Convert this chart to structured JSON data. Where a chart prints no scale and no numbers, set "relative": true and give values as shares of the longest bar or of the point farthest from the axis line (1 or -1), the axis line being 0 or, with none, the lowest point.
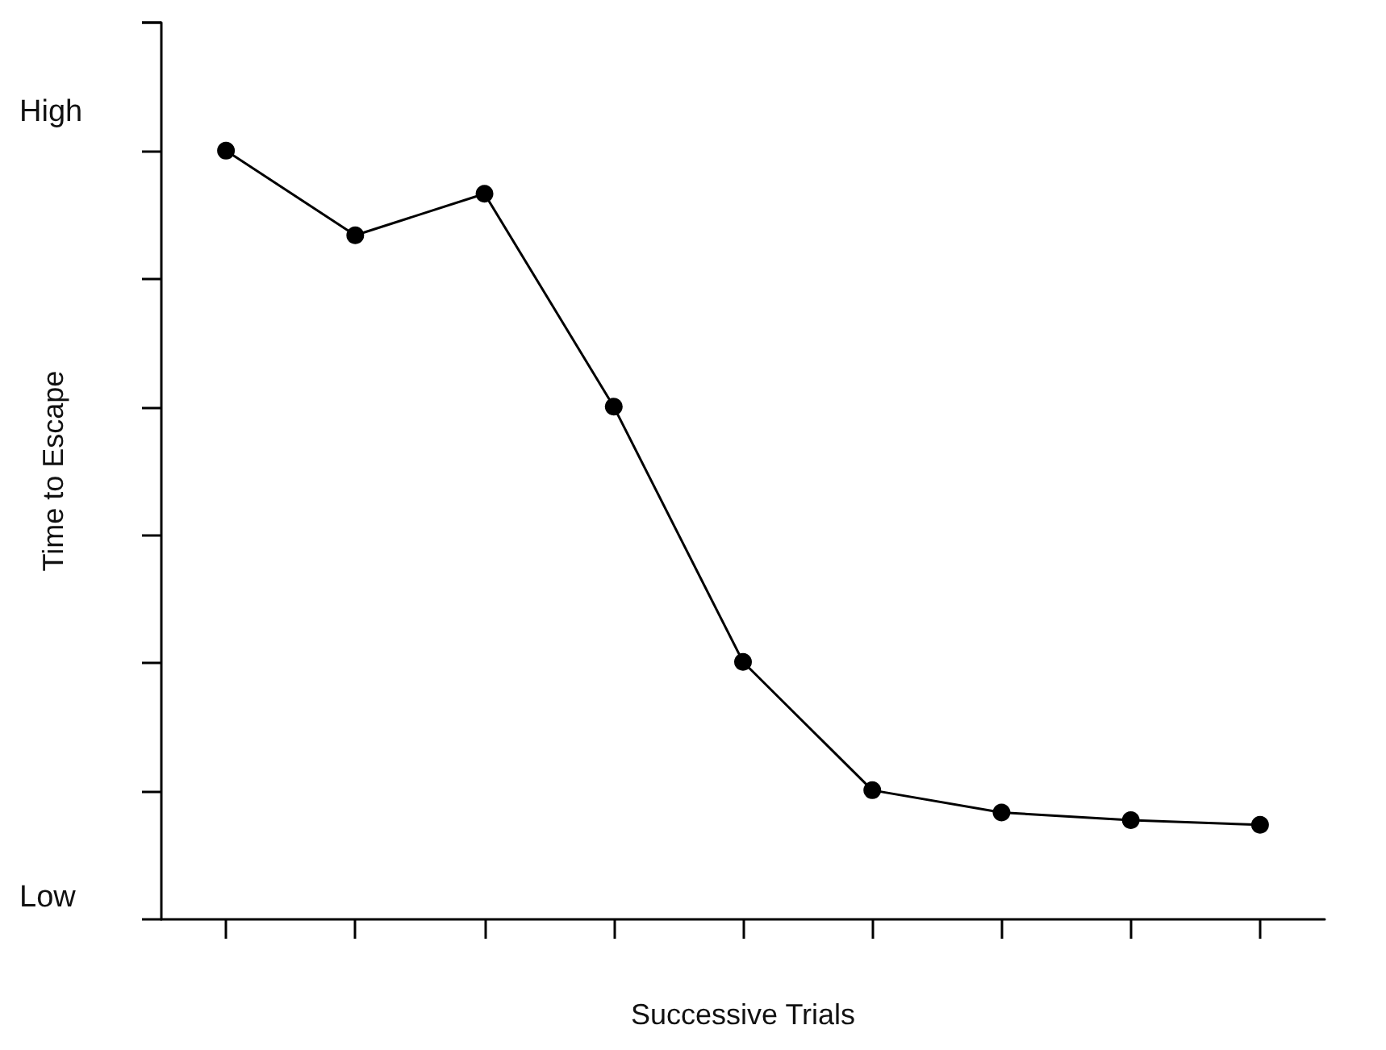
{
  "chart_data": {
    "type": "line",
    "relative": true,
    "xlabel": "Successive Trials",
    "ylabel": "Time to Escape",
    "annotations": [
      "High",
      "Low"
    ],
    "categories": [
      null,
      null,
      null,
      null,
      null,
      null,
      null,
      null,
      null
    ],
    "series": [
      {
        "color": "#000000",
        "values": [
          1,
          0.89,
          0.944,
          0.667,
          0.335,
          0.168,
          0.139,
          0.129,
          0.123
        ]
      }
    ],
    "marker": "circle",
    "line_style": "solid"
  }
}
